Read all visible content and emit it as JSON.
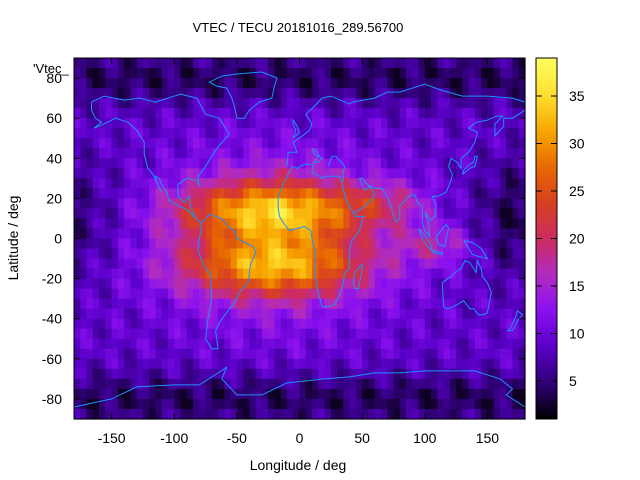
{
  "chart_data": {
    "type": "heatmap",
    "title": "VTEC / TECU 20181016_289.56700",
    "xlabel": "Longitude / deg",
    "ylabel": "Latitude / deg",
    "series_label": "'Vtec_",
    "xlim": [
      -180,
      180
    ],
    "ylim": [
      -90,
      90
    ],
    "x_ticks": [
      -150,
      -100,
      -50,
      0,
      50,
      100,
      150
    ],
    "y_ticks": [
      -80,
      -60,
      -40,
      -20,
      0,
      20,
      40,
      60,
      80
    ],
    "colorbar": {
      "range": [
        1,
        39
      ],
      "ticks": [
        5,
        10,
        15,
        20,
        25,
        30,
        35
      ],
      "palette": [
        "#000000",
        "#300078",
        "#5a00c8",
        "#8a10f0",
        "#b02cc0",
        "#cc2c60",
        "#d84020",
        "#e86a00",
        "#f8a800",
        "#ffe030",
        "#ffff60"
      ]
    },
    "grid": {
      "lon_step": 5,
      "lat_step": 5,
      "description": "VTEC values in TECU on a 5 deg x 5 deg global grid; a daytime peak of about 38 TECU near longitude -20, latitude 15, with equatorial crests near latitude +/-15 and minima of about 2-5 TECU over high latitudes and the night side.",
      "peak": {
        "lon": -20,
        "lat": 15,
        "value": 38
      },
      "min_value": 2
    },
    "overlay": {
      "name": "coastlines",
      "color": "#1e90ff"
    }
  }
}
